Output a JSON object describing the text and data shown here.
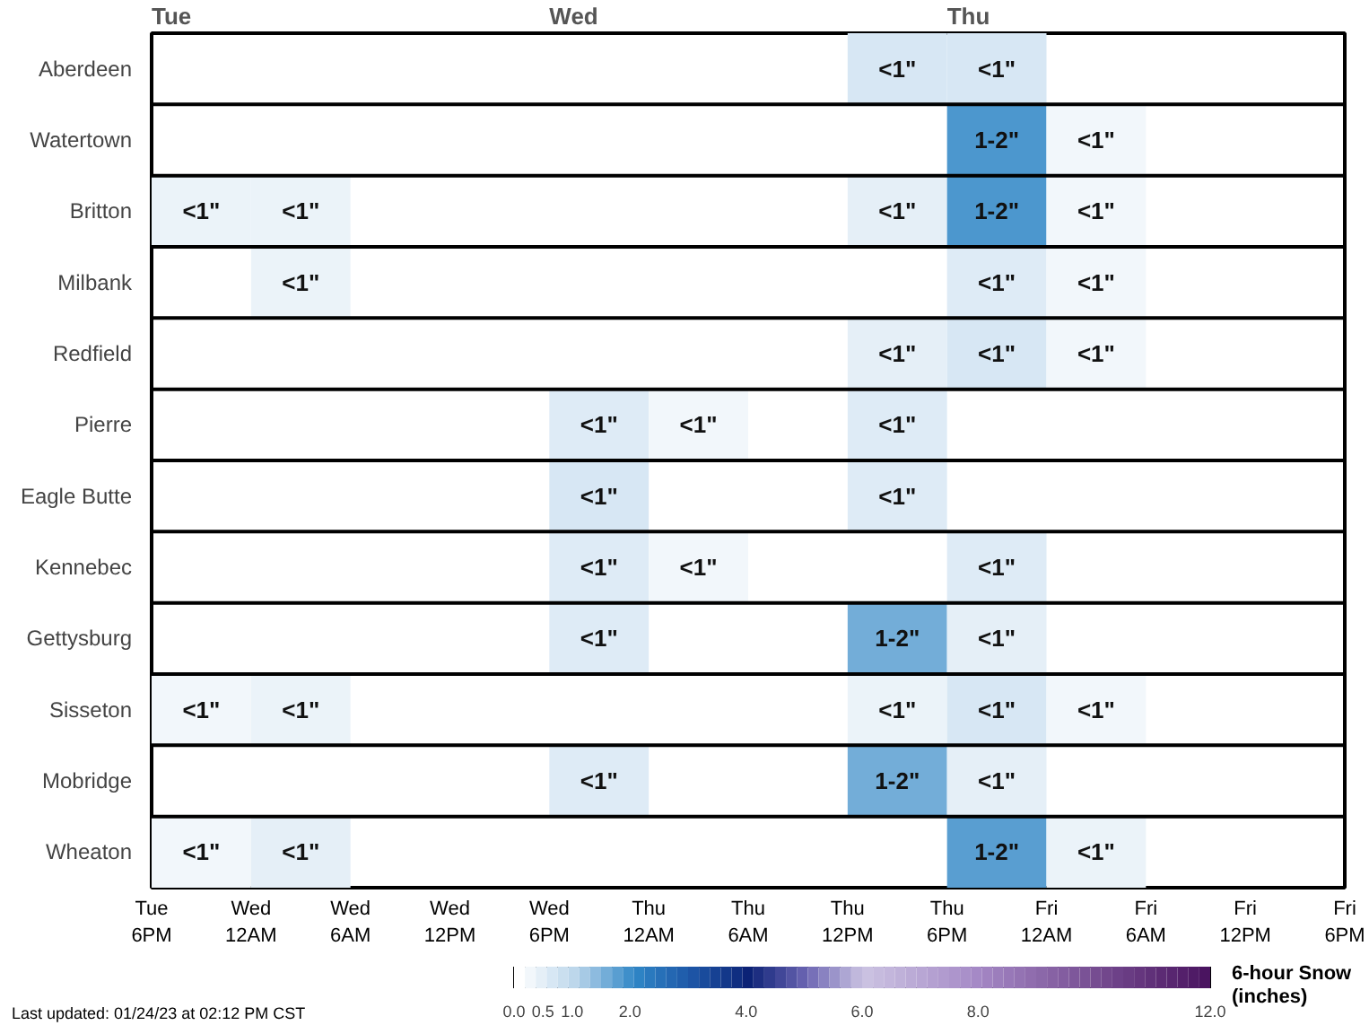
{
  "chart_data": {
    "type": "heatmap",
    "clabel": "6-hour Snow\n(inches)",
    "categories": [
      null,
      null,
      null,
      null,
      null,
      null,
      null,
      null,
      null,
      null,
      null,
      null
    ],
    "y_categories": [
      "Aberdeen",
      "Watertown",
      "Britton",
      "Milbank",
      "Redfield",
      "Pierre",
      "Eagle Butte",
      "Kennebec",
      "Gettysburg",
      "Sisseton",
      "Mobridge",
      "Wheaton"
    ],
    "cells": [
      [
        null,
        null,
        null,
        null,
        null,
        null,
        null,
        0.6,
        0.6,
        null,
        null,
        null
      ],
      [
        null,
        null,
        null,
        null,
        null,
        null,
        null,
        null,
        1.8,
        0.2,
        null,
        null
      ],
      [
        0.3,
        0.3,
        null,
        null,
        null,
        null,
        null,
        0.4,
        1.8,
        0.2,
        null,
        null
      ],
      [
        null,
        0.3,
        null,
        null,
        null,
        null,
        null,
        null,
        0.5,
        0.2,
        null,
        null
      ],
      [
        null,
        null,
        null,
        null,
        null,
        null,
        null,
        0.4,
        0.6,
        0.2,
        null,
        null
      ],
      [
        null,
        null,
        null,
        null,
        0.5,
        0.2,
        null,
        0.5,
        null,
        null,
        null,
        null
      ],
      [
        null,
        null,
        null,
        null,
        0.6,
        null,
        null,
        0.5,
        null,
        null,
        null,
        null
      ],
      [
        null,
        null,
        null,
        null,
        0.5,
        0.2,
        null,
        null,
        0.5,
        null,
        null,
        null
      ],
      [
        null,
        null,
        null,
        null,
        0.5,
        null,
        null,
        1.5,
        0.4,
        null,
        null,
        null
      ],
      [
        0.2,
        0.3,
        null,
        null,
        null,
        null,
        null,
        0.3,
        0.6,
        0.2,
        null,
        null
      ],
      [
        null,
        null,
        null,
        null,
        0.5,
        null,
        null,
        1.5,
        0.4,
        null,
        null,
        null
      ],
      [
        0.2,
        0.4,
        null,
        null,
        null,
        null,
        null,
        null,
        1.7,
        0.3,
        null,
        null
      ]
    ],
    "cell_labels": [
      [
        null,
        null,
        null,
        null,
        null,
        null,
        null,
        "<1\"",
        "<1\"",
        null,
        null,
        null
      ],
      [
        null,
        null,
        null,
        null,
        null,
        null,
        null,
        null,
        "1-2\"",
        "<1\"",
        null,
        null
      ],
      [
        "<1\"",
        "<1\"",
        null,
        null,
        null,
        null,
        null,
        "<1\"",
        "1-2\"",
        "<1\"",
        null,
        null
      ],
      [
        null,
        "<1\"",
        null,
        null,
        null,
        null,
        null,
        null,
        "<1\"",
        "<1\"",
        null,
        null
      ],
      [
        null,
        null,
        null,
        null,
        null,
        null,
        null,
        "<1\"",
        "<1\"",
        "<1\"",
        null,
        null
      ],
      [
        null,
        null,
        null,
        null,
        "<1\"",
        "<1\"",
        null,
        "<1\"",
        null,
        null,
        null,
        null
      ],
      [
        null,
        null,
        null,
        null,
        "<1\"",
        null,
        null,
        "<1\"",
        null,
        null,
        null,
        null
      ],
      [
        null,
        null,
        null,
        null,
        "<1\"",
        "<1\"",
        null,
        null,
        "<1\"",
        null,
        null,
        null
      ],
      [
        null,
        null,
        null,
        null,
        "<1\"",
        null,
        null,
        "1-2\"",
        "<1\"",
        null,
        null,
        null
      ],
      [
        "<1\"",
        "<1\"",
        null,
        null,
        null,
        null,
        null,
        "<1\"",
        "<1\"",
        "<1\"",
        null,
        null
      ],
      [
        null,
        null,
        null,
        null,
        "<1\"",
        null,
        null,
        "1-2\"",
        "<1\"",
        null,
        null,
        null
      ],
      [
        "<1\"",
        "<1\"",
        null,
        null,
        null,
        null,
        null,
        null,
        "1-2\"",
        "<1\"",
        null,
        null
      ]
    ],
    "clim": [
      0,
      12
    ],
    "cticks": [
      {
        "value": 0,
        "label": "0.0"
      },
      {
        "value": 0.5,
        "label": "0.5"
      },
      {
        "value": 1,
        "label": "1.0"
      },
      {
        "value": 2,
        "label": "2.0"
      },
      {
        "value": 4,
        "label": "4.0"
      },
      {
        "value": 6,
        "label": "6.0"
      },
      {
        "value": 8,
        "label": "8.0"
      },
      {
        "value": 12,
        "label": "12.0"
      }
    ],
    "annotations": [
      "Tue\n6PM",
      "Wed\n12AM",
      "Wed\n6AM",
      "Wed\n12PM",
      "Wed\n6PM",
      "Thu\n12AM",
      "Thu\n6AM",
      "Thu\n12PM",
      "Thu\n6PM",
      "Fri\n12AM",
      "Fri\n6AM",
      "Fri\n12PM",
      "Fri\n6PM",
      "Tue",
      "Wed",
      "Thu",
      "Last updated: 01/24/23 at 02:12 PM CST"
    ]
  }
}
